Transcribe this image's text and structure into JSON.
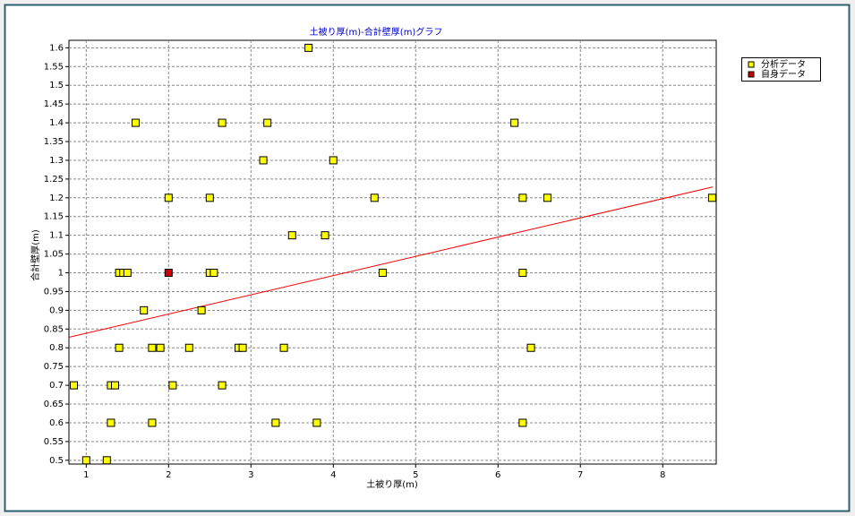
{
  "chart_data": {
    "type": "scatter",
    "title": "土被り厚(m)-合計壁厚(m)グラフ",
    "x_label": "土被り厚(m)",
    "y_label": "合計壁厚(m)",
    "xlim": [
      0.79,
      8.65
    ],
    "ylim": [
      0.49,
      1.62
    ],
    "xticks": [
      1,
      2,
      3,
      4,
      5,
      6,
      7,
      8
    ],
    "yticks": [
      0.5,
      0.55,
      0.6,
      0.65,
      0.7,
      0.75,
      0.8,
      0.85,
      0.9,
      0.95,
      1,
      1.05,
      1.1,
      1.15,
      1.2,
      1.25,
      1.3,
      1.35,
      1.4,
      1.45,
      1.5,
      1.55,
      1.6
    ],
    "grid": true,
    "legend": "top-right",
    "series": [
      {
        "name": "分析データ",
        "color": "#ffff00",
        "x": [
          3.7,
          1.6,
          2.65,
          3.2,
          6.2,
          3.15,
          4.0,
          2.0,
          2.5,
          4.5,
          6.3,
          6.6,
          8.6,
          3.5,
          3.9,
          1.4,
          1.45,
          1.5,
          2.5,
          2.55,
          4.6,
          6.3,
          1.7,
          2.4,
          1.4,
          1.8,
          1.9,
          2.25,
          2.85,
          2.9,
          3.4,
          6.4,
          0.85,
          1.3,
          1.35,
          2.05,
          2.65,
          1.3,
          1.8,
          3.3,
          3.8,
          6.3,
          1.0,
          1.25
        ],
        "values": [
          1.6,
          1.4,
          1.4,
          1.4,
          1.4,
          1.3,
          1.3,
          1.2,
          1.2,
          1.2,
          1.2,
          1.2,
          1.2,
          1.1,
          1.1,
          1.0,
          1.0,
          1.0,
          1.0,
          1.0,
          1.0,
          1.0,
          0.9,
          0.9,
          0.8,
          0.8,
          0.8,
          0.8,
          0.8,
          0.8,
          0.8,
          0.8,
          0.7,
          0.7,
          0.7,
          0.7,
          0.7,
          0.6,
          0.6,
          0.6,
          0.6,
          0.6,
          0.5,
          0.5
        ]
      },
      {
        "name": "自身データ",
        "color": "#cc0000",
        "x": [
          2.0
        ],
        "values": [
          1.0
        ]
      }
    ],
    "trendline": {
      "color": "#ff0000",
      "x": [
        0.79,
        8.61
      ],
      "values": [
        0.828,
        1.229
      ]
    }
  }
}
